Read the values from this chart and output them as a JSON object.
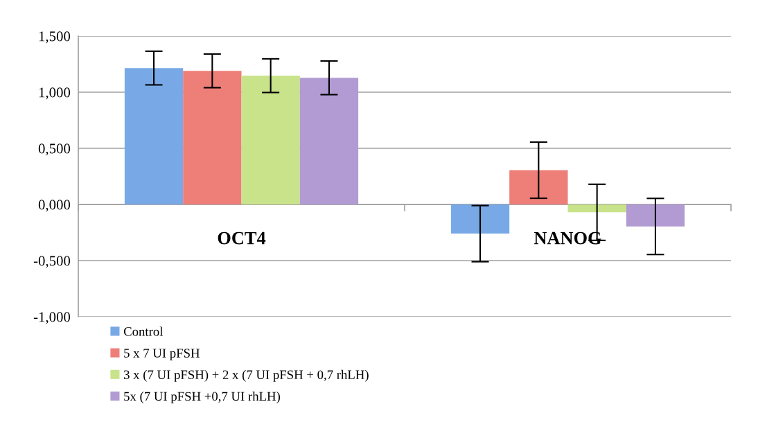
{
  "chart_data": {
    "type": "bar",
    "categories": [
      "OCT4",
      "NANOG"
    ],
    "series": [
      {
        "name": "Control",
        "color": "#78a9e6",
        "values": [
          1.215,
          -0.26
        ],
        "errors": [
          0.15,
          0.25
        ]
      },
      {
        "name": "5 x 7 UI pFSH",
        "color": "#ee7e78",
        "values": [
          1.19,
          0.305
        ],
        "errors": [
          0.15,
          0.25
        ]
      },
      {
        "name": "3 x (7 UI pFSH) + 2 x (7 UI pFSH + 0,7 rhLH)",
        "color": "#c8e38a",
        "values": [
          1.147,
          -0.07
        ],
        "errors": [
          0.15,
          0.25
        ]
      },
      {
        "name": "5x (7 UI pFSH +0,7 UI rhLH)",
        "color": "#b29bd2",
        "values": [
          1.128,
          -0.196
        ],
        "errors": [
          0.15,
          0.25
        ]
      }
    ],
    "ylim": [
      -1,
      1.5
    ],
    "yticks": [
      {
        "value": -1,
        "label": "-1,000"
      },
      {
        "value": -0.5,
        "label": "-0,500"
      },
      {
        "value": 0,
        "label": "0,000"
      },
      {
        "value": 0.5,
        "label": "0,500"
      },
      {
        "value": 1,
        "label": "1,000"
      },
      {
        "value": 1.5,
        "label": "1,500"
      }
    ],
    "grid": "y",
    "legend": "bottom left"
  }
}
